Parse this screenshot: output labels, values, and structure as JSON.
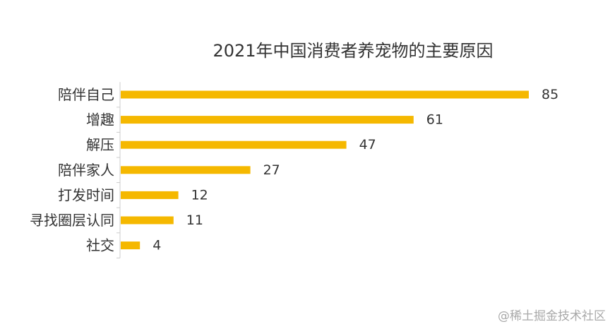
{
  "chart_data": {
    "type": "bar",
    "orientation": "horizontal",
    "title": "2021年中国消费者养宠物的主要原因",
    "categories": [
      "陪伴自己",
      "增趣",
      "解压",
      "陪伴家人",
      "打发时间",
      "寻找圈层认同",
      "社交"
    ],
    "values": [
      85,
      61,
      47,
      27,
      12,
      11,
      4
    ],
    "xlabel": "",
    "ylabel": "",
    "xlim": [
      0,
      85
    ],
    "grid": false,
    "legend": "none",
    "data_labels": true,
    "colors": {
      "bar": "#f5b800",
      "axis": "#cccccc",
      "text": "#333333"
    }
  },
  "watermark": "@稀土掘金技术社区"
}
